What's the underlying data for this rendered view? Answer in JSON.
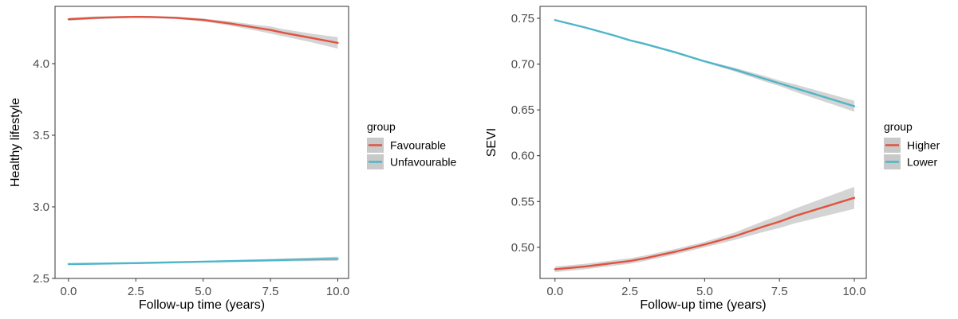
{
  "chart_data": [
    {
      "type": "line",
      "xlabel": "Follow-up time (years)",
      "ylabel": "Healthy lifestyle",
      "xlim": [
        -0.5,
        10.4
      ],
      "ylim": [
        2.5,
        4.4
      ],
      "xticks": [
        "0.0",
        "2.5",
        "5.0",
        "7.5",
        "10.0"
      ],
      "yticks": [
        "2.5",
        "3.0",
        "3.5",
        "4.0"
      ],
      "grid": false,
      "legend": {
        "title": "group",
        "position": "right"
      },
      "series": [
        {
          "name": "Favourable",
          "color": "#e0533f",
          "x": [
            0,
            1,
            2,
            2.5,
            3,
            4,
            5,
            6,
            7,
            7.5,
            8,
            9,
            10
          ],
          "y": [
            4.31,
            4.32,
            4.325,
            4.327,
            4.326,
            4.32,
            4.305,
            4.28,
            4.25,
            4.235,
            4.215,
            4.18,
            4.145
          ],
          "ci_lower": [
            4.3,
            4.31,
            4.318,
            4.32,
            4.319,
            4.312,
            4.295,
            4.265,
            4.23,
            4.21,
            4.19,
            4.15,
            4.105
          ],
          "ci_upper": [
            4.32,
            4.33,
            4.332,
            4.334,
            4.333,
            4.328,
            4.315,
            4.295,
            4.27,
            4.26,
            4.24,
            4.21,
            4.185
          ]
        },
        {
          "name": "Unfavourable",
          "color": "#4fb5c9",
          "x": [
            0,
            2.5,
            5,
            7.5,
            10
          ],
          "y": [
            2.6,
            2.607,
            2.617,
            2.627,
            2.637
          ],
          "ci_lower": [
            2.595,
            2.603,
            2.612,
            2.618,
            2.622
          ],
          "ci_upper": [
            2.605,
            2.611,
            2.622,
            2.636,
            2.652
          ]
        }
      ]
    },
    {
      "type": "line",
      "xlabel": "Follow-up time (years)",
      "ylabel": "SEVI",
      "xlim": [
        -0.5,
        10.4
      ],
      "ylim": [
        0.466,
        0.763
      ],
      "xticks": [
        "0.0",
        "2.5",
        "5.0",
        "7.5",
        "10.0"
      ],
      "yticks": [
        "0.50",
        "0.55",
        "0.60",
        "0.65",
        "0.70",
        "0.75"
      ],
      "grid": false,
      "legend": {
        "title": "group",
        "position": "right"
      },
      "series": [
        {
          "name": "Higher",
          "color": "#e0533f",
          "x": [
            0,
            1,
            2,
            2.5,
            3,
            4,
            5,
            6,
            7,
            7.5,
            8,
            9,
            10
          ],
          "y": [
            0.476,
            0.479,
            0.483,
            0.485,
            0.488,
            0.495,
            0.503,
            0.512,
            0.523,
            0.528,
            0.534,
            0.544,
            0.554
          ],
          "ci_lower": [
            0.473,
            0.476,
            0.48,
            0.482,
            0.485,
            0.492,
            0.5,
            0.508,
            0.517,
            0.521,
            0.526,
            0.534,
            0.542
          ],
          "ci_upper": [
            0.479,
            0.482,
            0.486,
            0.488,
            0.491,
            0.498,
            0.506,
            0.516,
            0.529,
            0.535,
            0.542,
            0.554,
            0.566
          ]
        },
        {
          "name": "Lower",
          "color": "#4fb5c9",
          "x": [
            0,
            1,
            2,
            2.5,
            3,
            4,
            5,
            6,
            7,
            7.5,
            8,
            9,
            10
          ],
          "y": [
            0.748,
            0.74,
            0.731,
            0.726,
            0.722,
            0.713,
            0.703,
            0.694,
            0.684,
            0.679,
            0.674,
            0.664,
            0.654
          ],
          "ci_lower": [
            0.747,
            0.739,
            0.73,
            0.725,
            0.721,
            0.712,
            0.702,
            0.692,
            0.681,
            0.676,
            0.67,
            0.659,
            0.648
          ],
          "ci_upper": [
            0.749,
            0.741,
            0.732,
            0.727,
            0.723,
            0.714,
            0.704,
            0.696,
            0.687,
            0.682,
            0.678,
            0.669,
            0.66
          ]
        }
      ]
    }
  ]
}
